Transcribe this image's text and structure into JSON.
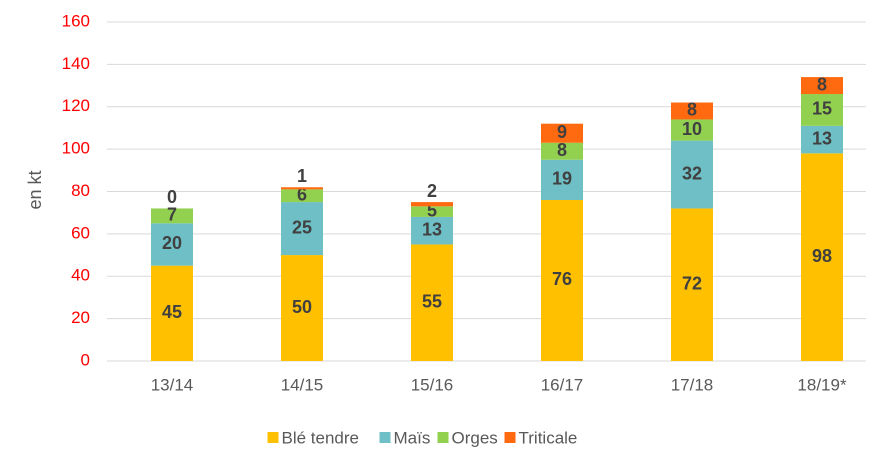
{
  "chart_data": {
    "type": "stacked_bar",
    "y_axis_label": "en kt",
    "categories": [
      "13/14",
      "14/15",
      "15/16",
      "16/17",
      "17/18",
      "18/19*"
    ],
    "series": [
      {
        "name": "Blé tendre",
        "color": "#FFC000",
        "values": [
          45,
          50,
          55,
          76,
          72,
          98
        ]
      },
      {
        "name": "Maïs",
        "color": "#6FBFC6",
        "values": [
          20,
          25,
          13,
          19,
          32,
          13
        ]
      },
      {
        "name": "Orges",
        "color": "#92D050",
        "values": [
          7,
          6,
          5,
          8,
          10,
          15
        ]
      },
      {
        "name": "Triticale",
        "color": "#FF6A10",
        "values": [
          0,
          1,
          2,
          9,
          8,
          8
        ]
      }
    ],
    "ylim": [
      0,
      160
    ],
    "yticks": [
      0,
      20,
      40,
      60,
      80,
      100,
      120,
      140,
      160
    ],
    "grid": true,
    "tick_color": "#FF0000",
    "legend": "bottom"
  }
}
